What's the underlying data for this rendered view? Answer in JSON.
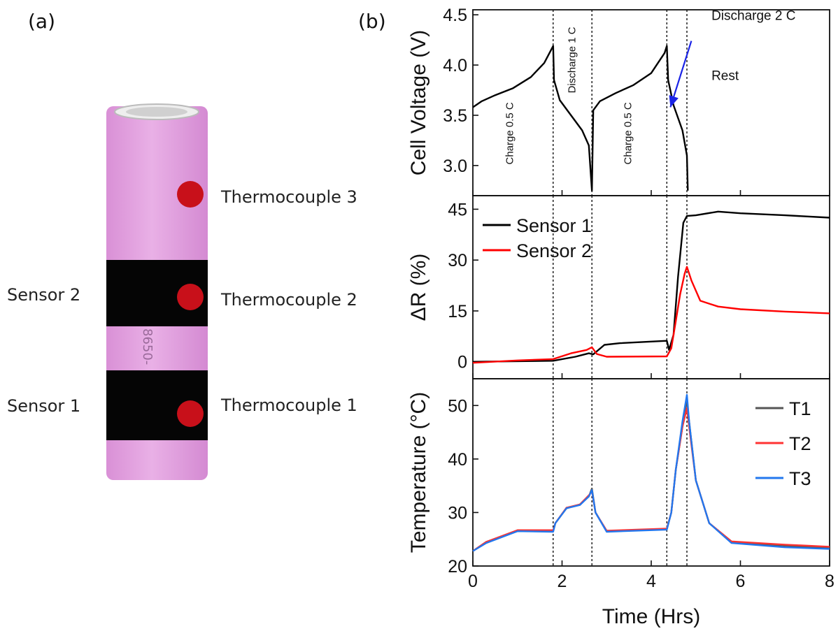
{
  "panel_a": {
    "label": "(a)",
    "labels": {
      "thermocouple3": "Thermocouple 3",
      "thermocouple2": "Thermocouple 2",
      "thermocouple1": "Thermocouple 1",
      "sensor2": "Sensor 2",
      "sensor1": "Sensor 1"
    },
    "colors": {
      "cell_body": "#e3a3e0",
      "sensor_band": "#050505",
      "thermocouple_dot": "#c8101a"
    }
  },
  "panel_b_label": "(b)",
  "chart_data": [
    {
      "type": "line",
      "id": "voltage",
      "xlabel": "Time (Hrs)",
      "ylabel": "Cell Voltage (V)",
      "xlim": [
        0,
        8
      ],
      "ylim": [
        2.7,
        4.55
      ],
      "yticks": [
        3.0,
        3.5,
        4.0,
        4.5
      ],
      "ytick_labels": [
        "3.0",
        "3.5",
        "4.0",
        "4.5"
      ],
      "vlines": [
        1.8,
        2.67,
        4.35,
        4.8
      ],
      "annotations": [
        {
          "text": "Charge 0.5 C",
          "x": 0.9,
          "y": 3.32,
          "rotate": -90
        },
        {
          "text": "Discharge 1 C",
          "x": 2.3,
          "y": 4.05,
          "rotate": -90
        },
        {
          "text": "Charge 0.5 C",
          "x": 3.55,
          "y": 3.32,
          "rotate": -90
        },
        {
          "text": "Discharge 2 C",
          "x": 5.35,
          "y": 4.45,
          "rotate": 0
        },
        {
          "text": "Rest",
          "x": 5.35,
          "y": 3.85,
          "rotate": 0
        }
      ],
      "arrow": {
        "from": [
          4.9,
          4.24
        ],
        "to": [
          4.43,
          3.58
        ],
        "color": "#1a23e6"
      },
      "series": [
        {
          "color": "#000000",
          "points": [
            [
              0,
              3.58
            ],
            [
              0.2,
              3.64
            ],
            [
              0.5,
              3.7
            ],
            [
              0.9,
              3.77
            ],
            [
              1.3,
              3.88
            ],
            [
              1.6,
              4.02
            ],
            [
              1.8,
              4.19
            ],
            [
              1.82,
              3.85
            ],
            [
              1.95,
              3.65
            ],
            [
              2.2,
              3.5
            ],
            [
              2.45,
              3.35
            ],
            [
              2.6,
              3.2
            ],
            [
              2.67,
              2.75
            ],
            [
              2.7,
              3.55
            ],
            [
              2.85,
              3.64
            ],
            [
              3.2,
              3.72
            ],
            [
              3.6,
              3.8
            ],
            [
              4.0,
              3.92
            ],
            [
              4.3,
              4.12
            ],
            [
              4.35,
              4.19
            ],
            [
              4.38,
              3.85
            ],
            [
              4.5,
              3.6
            ],
            [
              4.7,
              3.35
            ],
            [
              4.8,
              3.1
            ],
            [
              4.82,
              2.75
            ]
          ]
        }
      ]
    },
    {
      "type": "line",
      "id": "resistance",
      "ylabel": "ΔR (%)",
      "xlim": [
        0,
        8
      ],
      "ylim": [
        -5,
        49
      ],
      "yticks": [
        0,
        15,
        30,
        45
      ],
      "ytick_labels": [
        "0",
        "15",
        "30",
        "45"
      ],
      "vlines": [
        1.8,
        2.67,
        4.35,
        4.8
      ],
      "legend": "top-left",
      "series": [
        {
          "name": "Sensor 1",
          "color": "#000000",
          "points": [
            [
              0,
              0
            ],
            [
              1.8,
              0.3
            ],
            [
              2.3,
              1.5
            ],
            [
              2.6,
              2.5
            ],
            [
              2.7,
              2.2
            ],
            [
              2.95,
              5
            ],
            [
              3.3,
              5.5
            ],
            [
              4.35,
              6.2
            ],
            [
              4.4,
              3.5
            ],
            [
              4.5,
              8
            ],
            [
              4.6,
              25
            ],
            [
              4.72,
              41
            ],
            [
              4.8,
              43
            ],
            [
              5.0,
              43.2
            ],
            [
              5.5,
              44.3
            ],
            [
              6.0,
              43.8
            ],
            [
              7.0,
              43.2
            ],
            [
              8.0,
              42.5
            ]
          ]
        },
        {
          "name": "Sensor 2",
          "color": "#ff0000",
          "points": [
            [
              0,
              -0.3
            ],
            [
              1.0,
              0.4
            ],
            [
              1.8,
              0.8
            ],
            [
              2.2,
              2.5
            ],
            [
              2.55,
              3.5
            ],
            [
              2.67,
              4.3
            ],
            [
              2.78,
              2.3
            ],
            [
              3.0,
              1.5
            ],
            [
              4.35,
              1.6
            ],
            [
              4.45,
              4
            ],
            [
              4.55,
              12
            ],
            [
              4.65,
              20
            ],
            [
              4.75,
              26
            ],
            [
              4.8,
              28
            ],
            [
              4.9,
              24
            ],
            [
              5.1,
              18
            ],
            [
              5.5,
              16.3
            ],
            [
              6.0,
              15.5
            ],
            [
              7.0,
              14.8
            ],
            [
              8.0,
              14.3
            ]
          ]
        }
      ]
    },
    {
      "type": "line",
      "id": "temperature",
      "ylabel": "Temperature (°C)",
      "xlim": [
        0,
        8
      ],
      "ylim": [
        20,
        55
      ],
      "yticks": [
        20,
        30,
        40,
        50
      ],
      "ytick_labels": [
        "20",
        "30",
        "40",
        "50"
      ],
      "xticks": [
        0,
        2,
        4,
        6,
        8
      ],
      "xtick_labels": [
        "0",
        "2",
        "4",
        "6",
        "8"
      ],
      "vlines": [
        1.8,
        2.67,
        4.35,
        4.8
      ],
      "legend": "top-right",
      "series": [
        {
          "name": "T1",
          "color": "#555555",
          "points": [
            [
              0,
              22.8
            ],
            [
              0.3,
              24.5
            ],
            [
              1.0,
              26.6
            ],
            [
              1.8,
              26.5
            ],
            [
              1.85,
              28
            ],
            [
              2.1,
              30.8
            ],
            [
              2.4,
              31.5
            ],
            [
              2.6,
              33
            ],
            [
              2.67,
              34.5
            ],
            [
              2.75,
              30
            ],
            [
              3.0,
              26.5
            ],
            [
              4.35,
              26.9
            ],
            [
              4.45,
              30
            ],
            [
              4.55,
              38
            ],
            [
              4.7,
              46
            ],
            [
              4.8,
              51
            ],
            [
              4.85,
              47
            ],
            [
              5.0,
              36
            ],
            [
              5.3,
              28
            ],
            [
              5.8,
              24.5
            ],
            [
              7.0,
              23.8
            ],
            [
              8.0,
              23.4
            ]
          ]
        },
        {
          "name": "T2",
          "color": "#ff3333",
          "points": [
            [
              0,
              22.8
            ],
            [
              0.3,
              24.5
            ],
            [
              1.0,
              26.7
            ],
            [
              1.8,
              26.7
            ],
            [
              1.85,
              28
            ],
            [
              2.1,
              30.9
            ],
            [
              2.4,
              31.5
            ],
            [
              2.6,
              33.2
            ],
            [
              2.67,
              34
            ],
            [
              2.75,
              30
            ],
            [
              3.0,
              26.6
            ],
            [
              4.35,
              27
            ],
            [
              4.45,
              30
            ],
            [
              4.55,
              38
            ],
            [
              4.7,
              46
            ],
            [
              4.8,
              49.5
            ],
            [
              4.85,
              46
            ],
            [
              5.0,
              36
            ],
            [
              5.3,
              28
            ],
            [
              5.8,
              24.6
            ],
            [
              7.0,
              24
            ],
            [
              8.0,
              23.6
            ]
          ]
        },
        {
          "name": "T3",
          "color": "#2277ee",
          "points": [
            [
              0,
              22.8
            ],
            [
              0.3,
              24.3
            ],
            [
              1.0,
              26.5
            ],
            [
              1.8,
              26.4
            ],
            [
              1.85,
              28
            ],
            [
              2.1,
              30.8
            ],
            [
              2.4,
              31.4
            ],
            [
              2.6,
              33
            ],
            [
              2.67,
              34.2
            ],
            [
              2.75,
              30
            ],
            [
              3.0,
              26.4
            ],
            [
              4.35,
              26.8
            ],
            [
              4.45,
              30
            ],
            [
              4.55,
              38
            ],
            [
              4.7,
              47
            ],
            [
              4.8,
              52
            ],
            [
              4.85,
              47
            ],
            [
              5.0,
              36
            ],
            [
              5.3,
              28
            ],
            [
              5.8,
              24.3
            ],
            [
              7.0,
              23.5
            ],
            [
              8.0,
              23.2
            ]
          ]
        }
      ]
    }
  ]
}
